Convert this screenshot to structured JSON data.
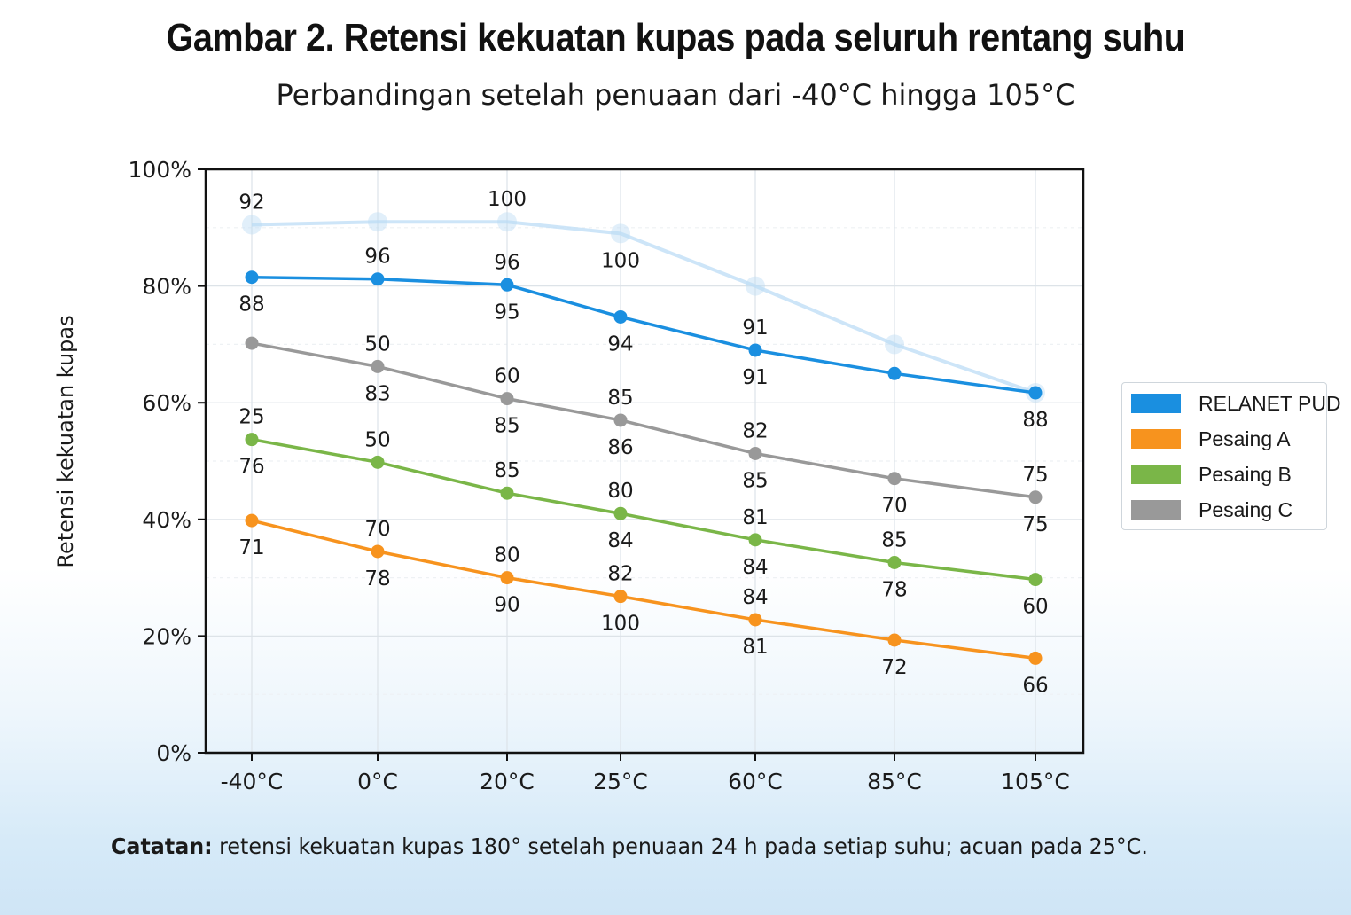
{
  "title": "Gambar 2. Retensi kekuatan kupas pada seluruh rentang suhu",
  "subtitle": "Perbandingan setelah penuaan dari -40°C hingga 105°C",
  "note": {
    "prefix": "Catatan:",
    "text": " retensi kekuatan kupas 180° setelah penuaan 24 h pada setiap suhu; acuan pada 25°C."
  },
  "chart_data": {
    "type": "line",
    "title": "Gambar 2. Retensi kekuatan kupas pada seluruh rentang suhu",
    "subtitle": "Perbandingan setelah penuaan dari -40°C hingga 105°C",
    "xlabel": "",
    "ylabel": "Retensi kekuatan kupas",
    "categories": [
      "-40°C",
      "0°C",
      "20°C",
      "25°C",
      "60°C",
      "85°C",
      "105°C"
    ],
    "ylim": [
      0,
      100
    ],
    "yticks": [
      "0%",
      "20%",
      "40%",
      "60%",
      "80%",
      "100%"
    ],
    "grid": true,
    "legend_position": "right",
    "series": [
      {
        "name": "RELANET PUD",
        "color": "#1a8fe0",
        "values": [
          81.5,
          81.2,
          80.2,
          74.7,
          69.0,
          65.0,
          61.7
        ],
        "labels_above": [
          "",
          "96",
          "96",
          "",
          "91",
          "",
          ""
        ],
        "labels_below": [
          "88",
          "",
          "95",
          "94",
          "91",
          "",
          "88"
        ]
      },
      {
        "name": "Pesaing A",
        "color": "#f7931e",
        "values": [
          39.8,
          34.5,
          30.0,
          26.8,
          22.8,
          19.3,
          16.2
        ],
        "labels_above": [
          "",
          "70",
          "80",
          "82",
          "84",
          "",
          ""
        ],
        "labels_below": [
          "71",
          "78",
          "90",
          "100",
          "81",
          "72",
          "66"
        ]
      },
      {
        "name": "Pesaing B",
        "color": "#7ab648",
        "values": [
          53.7,
          49.8,
          44.5,
          41.0,
          36.5,
          32.6,
          29.7
        ],
        "labels_above": [
          "25",
          "50",
          "85",
          "80",
          "81",
          "85",
          ""
        ],
        "labels_below": [
          "76",
          "",
          "",
          "84",
          "84",
          "78",
          "60"
        ]
      },
      {
        "name": "Pesaing C",
        "color": "#999999",
        "values": [
          70.2,
          66.2,
          60.7,
          57.0,
          51.3,
          47.0,
          43.8
        ],
        "labels_above": [
          "",
          "50",
          "60",
          "85",
          "82",
          "",
          "75"
        ],
        "labels_below": [
          "",
          "83",
          "85",
          "86",
          "85",
          "70",
          "75"
        ]
      },
      {
        "name": "",
        "color": "#bcdcf5",
        "faded": true,
        "values": [
          90.5,
          91.0,
          91.0,
          89.0,
          80.0,
          70.0,
          61.7
        ],
        "labels_above": [
          "92",
          "",
          "100",
          "",
          "",
          "",
          ""
        ],
        "labels_below": [
          "",
          "",
          "",
          "100",
          "",
          "",
          ""
        ]
      }
    ]
  }
}
